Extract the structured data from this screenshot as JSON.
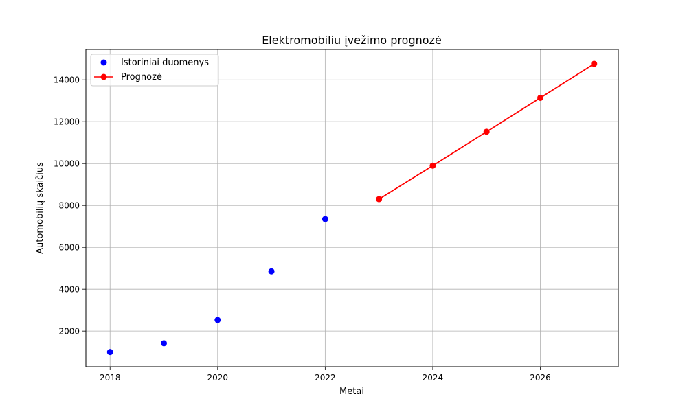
{
  "chart_data": {
    "type": "scatter",
    "title": "Elektromobiliu įvežimo prognozė",
    "xlabel": "Metai",
    "ylabel": "Automobilių skaičius",
    "xlim": [
      2017.55,
      2027.45
    ],
    "ylim": [
      300,
      15450
    ],
    "xticks": [
      2018,
      2020,
      2022,
      2024,
      2026
    ],
    "yticks": [
      2000,
      4000,
      6000,
      8000,
      10000,
      12000,
      14000
    ],
    "grid": true,
    "legend_position": "top-left",
    "series": [
      {
        "name": "Istoriniai duomenys",
        "kind": "scatter",
        "color": "#0000ff",
        "x": [
          2018,
          2019,
          2020,
          2021,
          2022
        ],
        "y": [
          1000,
          1420,
          2530,
          4850,
          7350
        ]
      },
      {
        "name": "Prognozė",
        "kind": "line",
        "color": "#ff0000",
        "x": [
          2023,
          2024,
          2025,
          2026,
          2027
        ],
        "y": [
          8300,
          9900,
          11520,
          13140,
          14760
        ]
      }
    ]
  }
}
